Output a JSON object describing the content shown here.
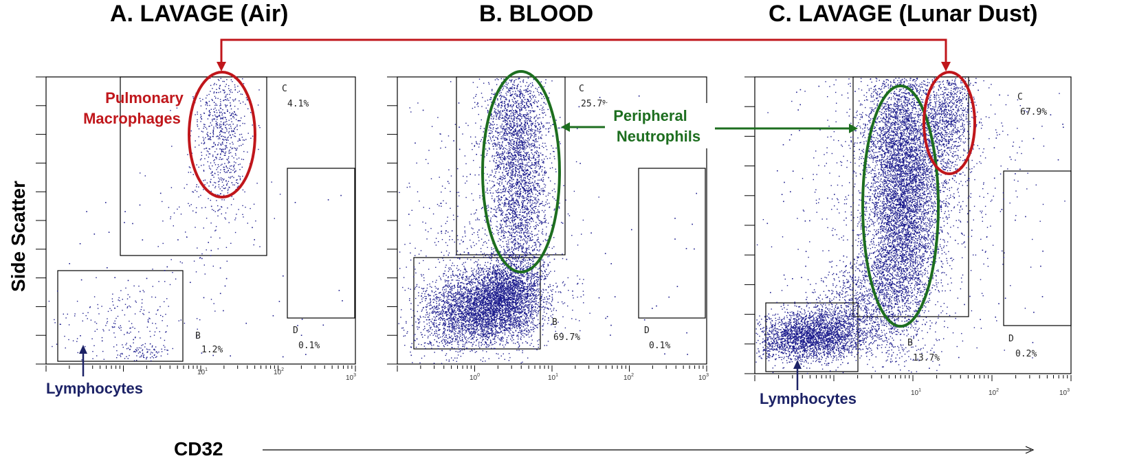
{
  "chart_data": [
    {
      "type": "scatter",
      "title": "A. LAVAGE  (Air)",
      "xscale": "log",
      "xlim": [
        0.1,
        1000
      ],
      "xticks": [
        "10^1",
        "10^2",
        "10^3"
      ],
      "gates": [
        {
          "name": "C",
          "value": "4.1%"
        },
        {
          "name": "B",
          "value": "1.2%"
        },
        {
          "name": "D",
          "value": "0.1%"
        }
      ]
    },
    {
      "type": "scatter",
      "title": "B. BLOOD",
      "xscale": "log",
      "xlim": [
        0.1,
        1000
      ],
      "xticks": [
        "10^0",
        "10^1",
        "10^2",
        "10^3"
      ],
      "gates": [
        {
          "name": "C",
          "value": "25.7%"
        },
        {
          "name": "B",
          "value": "69.7%"
        },
        {
          "name": "D",
          "value": "0.1%"
        }
      ]
    },
    {
      "type": "scatter",
      "title": "C. LAVAGE  (Lunar Dust)",
      "xscale": "log",
      "xlim": [
        0.1,
        1000
      ],
      "xticks": [
        "10^1",
        "10^2",
        "10^3"
      ],
      "gates": [
        {
          "name": "C",
          "value": "67.9%"
        },
        {
          "name": "B",
          "value": "13.7%"
        },
        {
          "name": "D",
          "value": "0.2%"
        }
      ]
    }
  ],
  "axes": {
    "xlabel": "CD32",
    "ylabel": "Side Scatter"
  },
  "annotations": {
    "macrophages_line1": "Pulmonary",
    "macrophages_line2": "Macrophages",
    "neutrophils_line1": "Peripheral",
    "neutrophils_line2": "Neutrophils",
    "lymphocytes_a": "Lymphocytes",
    "lymphocytes_c": "Lymphocytes"
  },
  "colors": {
    "dots": "#1a1a8c",
    "macrophage": "#c0161b",
    "neutrophil": "#1d6e1f",
    "lymphocyte": "#1c2266",
    "gate": "#000000"
  }
}
